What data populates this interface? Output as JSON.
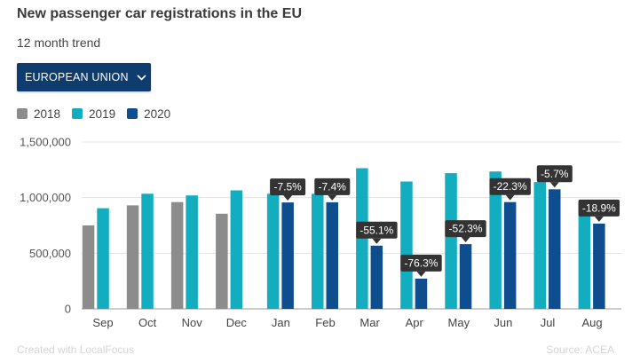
{
  "header": {
    "title": "New passenger car registrations in the EU",
    "subtitle": "12 month trend"
  },
  "region_select": {
    "label": "EUROPEAN UNION",
    "icon": "chevron-down-icon"
  },
  "legend": {
    "items": [
      {
        "label": "2018",
        "color": "#8c8c8c"
      },
      {
        "label": "2019",
        "color": "#12adbf"
      },
      {
        "label": "2020",
        "color": "#0e4d8e"
      }
    ]
  },
  "footer": {
    "credit": "Created with LocalFocus",
    "source": "Source: ACEA"
  },
  "chart_data": {
    "type": "bar",
    "categories": [
      "Sep",
      "Oct",
      "Nov",
      "Dec",
      "Jan",
      "Feb",
      "Mar",
      "Apr",
      "May",
      "Jun",
      "Jul",
      "Aug"
    ],
    "series": [
      {
        "name": "2018",
        "color": "#8c8c8c",
        "values": [
          750000,
          930000,
          960000,
          855000,
          null,
          null,
          null,
          null,
          null,
          null,
          null,
          null
        ]
      },
      {
        "name": "2019",
        "color": "#12adbf",
        "values": [
          905000,
          1035000,
          1020000,
          1065000,
          1035000,
          1035000,
          1265000,
          1145000,
          1220000,
          1235000,
          1140000,
          945000
        ]
      },
      {
        "name": "2020",
        "color": "#0e4d8e",
        "values": [
          null,
          null,
          null,
          null,
          957000,
          958000,
          568000,
          272000,
          582000,
          960000,
          1075000,
          767000
        ]
      }
    ],
    "annotations": [
      {
        "category": "Jan",
        "text": "-7.5%"
      },
      {
        "category": "Feb",
        "text": "-7.4%"
      },
      {
        "category": "Mar",
        "text": "-55.1%"
      },
      {
        "category": "Apr",
        "text": "-76.3%"
      },
      {
        "category": "May",
        "text": "-52.3%"
      },
      {
        "category": "Jun",
        "text": "-22.3%"
      },
      {
        "category": "Jul",
        "text": "-5.7%"
      },
      {
        "category": "Aug",
        "text": "-18.9%"
      }
    ],
    "ylim": [
      0,
      1500000
    ],
    "yticks": [
      {
        "value": 0,
        "label": "0"
      },
      {
        "value": 500000,
        "label": "500,000"
      },
      {
        "value": 1000000,
        "label": "1,000,000"
      },
      {
        "value": 1500000,
        "label": "1,500,000"
      }
    ],
    "grid": true
  }
}
